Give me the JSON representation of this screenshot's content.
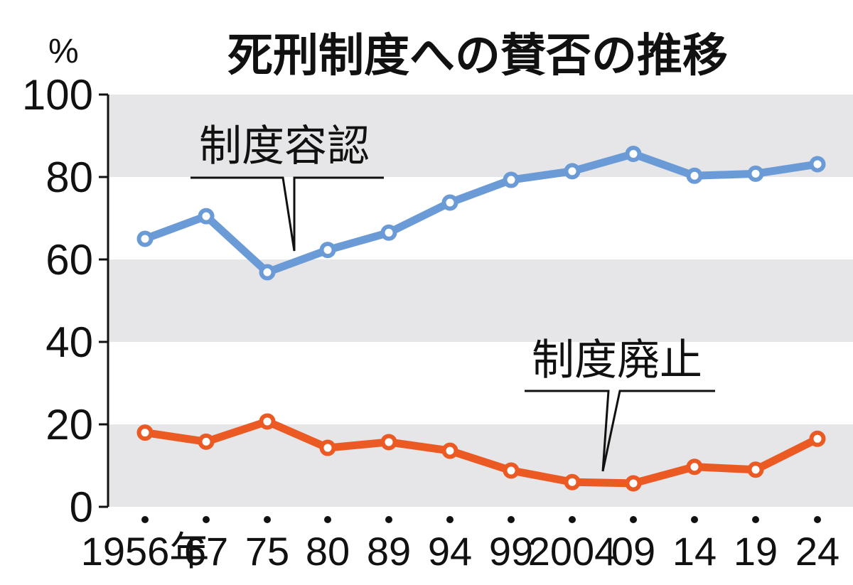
{
  "chart_data": {
    "type": "line",
    "title": "死刑制度への賛否の推移",
    "ylabel": "%",
    "ylim": [
      0,
      100
    ],
    "yticks": [
      "0",
      "20",
      "40",
      "60",
      "80",
      "100"
    ],
    "categories": [
      "1956年",
      "67",
      "75",
      "80",
      "89",
      "94",
      "99",
      "2004",
      "09",
      "14",
      "19",
      "24"
    ],
    "series": [
      {
        "name": "制度容認",
        "color": "#6b9bd6",
        "values": [
          65.0,
          70.5,
          56.9,
          62.3,
          66.5,
          73.8,
          79.3,
          81.4,
          85.6,
          80.3,
          80.8,
          83.1
        ]
      },
      {
        "name": "制度廃止",
        "color": "#ec5a24",
        "values": [
          18.0,
          15.8,
          20.7,
          14.3,
          15.7,
          13.6,
          8.8,
          6.0,
          5.7,
          9.7,
          9.0,
          16.5
        ]
      }
    ],
    "grid": "alternating bands"
  }
}
